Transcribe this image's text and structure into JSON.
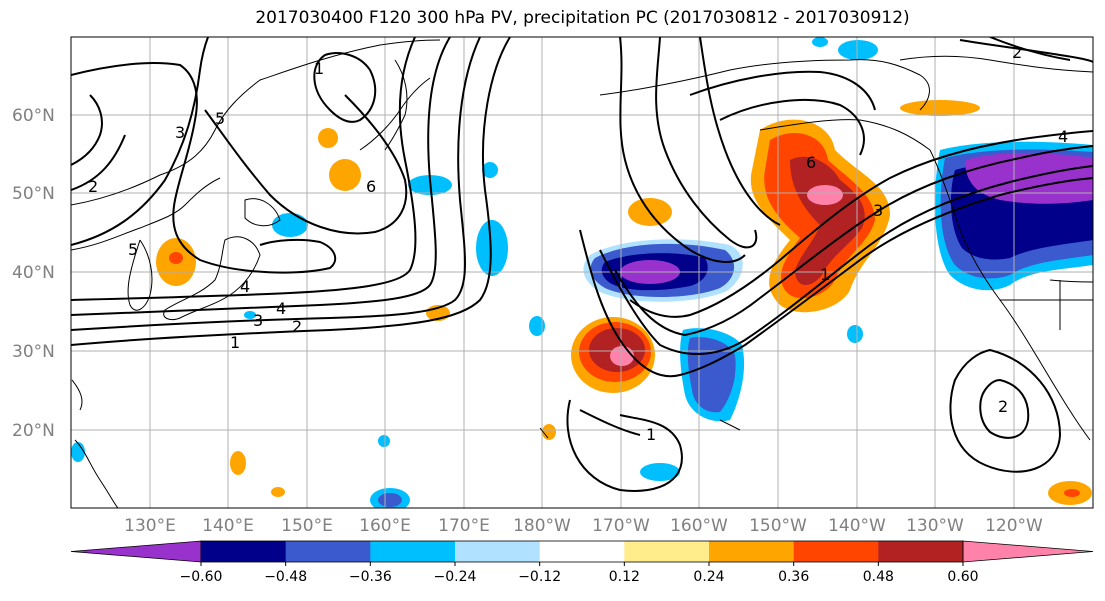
{
  "title": "2017030400 F120 300 hPa PV, precipitation PC (2017030812 - 2017030912)",
  "map": {
    "lat_labels": [
      "60°N",
      "50°N",
      "40°N",
      "30°N",
      "20°N"
    ],
    "lon_labels": [
      "130°E",
      "140°E",
      "150°E",
      "160°E",
      "170°E",
      "180°W",
      "170°W",
      "160°W",
      "150°W",
      "140°W",
      "130°W",
      "120°W"
    ]
  },
  "colorbar": {
    "colors": [
      "#9932CC",
      "#00008B",
      "#3A5ACD",
      "#00BFFF",
      "#B0E2FF",
      "#FFFFFF",
      "#FFEC8B",
      "#FFA500",
      "#FF4500",
      "#B22222",
      "#FF82AB"
    ],
    "ticks": [
      "-0.60",
      "-0.48",
      "-0.36",
      "-0.24",
      "-0.12",
      "0.12",
      "0.24",
      "0.36",
      "0.48",
      "0.60"
    ]
  },
  "contour_labels": [
    "1",
    "2",
    "3",
    "4",
    "5",
    "6",
    "1",
    "2",
    "3",
    "4",
    "5",
    "6",
    "1",
    "2",
    "3",
    "4",
    "1",
    "2"
  ]
}
